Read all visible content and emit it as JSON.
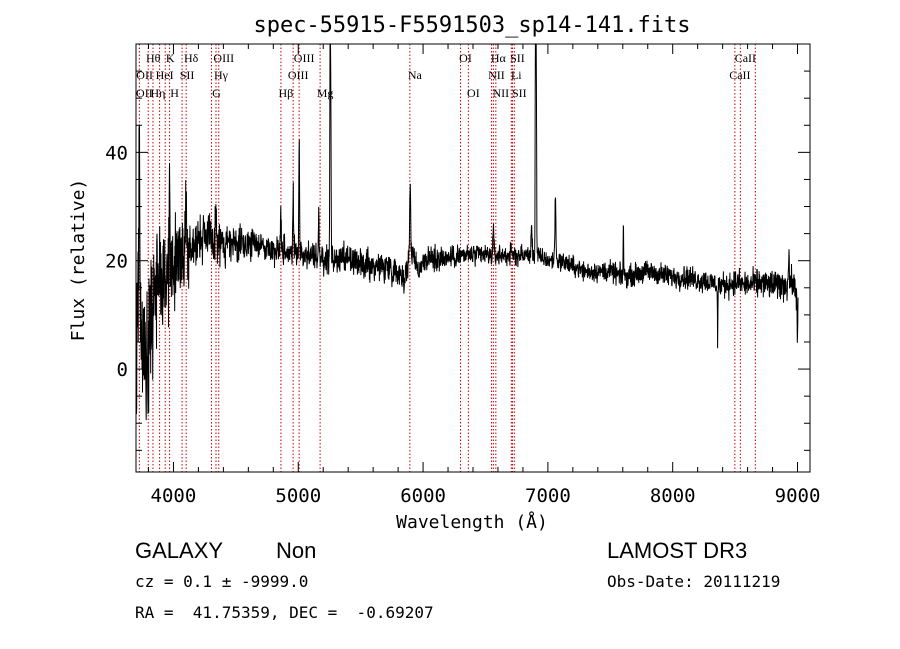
{
  "chart_data": {
    "type": "line",
    "title": "spec-55915-F5591503_sp14-141.fits",
    "xlabel": "Wavelength (Å)",
    "ylabel": "Flux (relative)",
    "xlim": [
      3700,
      9100
    ],
    "ylim": [
      -19,
      60
    ],
    "x_ticks": [
      4000,
      5000,
      6000,
      7000,
      8000,
      9000
    ],
    "y_ticks": [
      0,
      20,
      40
    ],
    "grid": false,
    "series": [
      {
        "name": "spectrum",
        "anchors": [
          [
            3700,
            3
          ],
          [
            3760,
            8
          ],
          [
            3800,
            5
          ],
          [
            3850,
            14
          ],
          [
            3900,
            18
          ],
          [
            3950,
            19
          ],
          [
            4000,
            20
          ],
          [
            4100,
            22
          ],
          [
            4200,
            24
          ],
          [
            4300,
            24
          ],
          [
            4400,
            23
          ],
          [
            4500,
            23
          ],
          [
            4600,
            23
          ],
          [
            4700,
            23
          ],
          [
            4800,
            22
          ],
          [
            4900,
            22
          ],
          [
            5000,
            21
          ],
          [
            5100,
            21
          ],
          [
            5200,
            20
          ],
          [
            5300,
            20
          ],
          [
            5400,
            20
          ],
          [
            5500,
            19.5
          ],
          [
            5600,
            19
          ],
          [
            5700,
            19
          ],
          [
            5800,
            18
          ],
          [
            5850,
            17
          ],
          [
            5920,
            22
          ],
          [
            5960,
            18
          ],
          [
            6000,
            20
          ],
          [
            6100,
            20.5
          ],
          [
            6200,
            20.5
          ],
          [
            6300,
            21
          ],
          [
            6400,
            21
          ],
          [
            6500,
            21
          ],
          [
            6600,
            21
          ],
          [
            6700,
            21
          ],
          [
            6800,
            21
          ],
          [
            6900,
            21
          ],
          [
            7000,
            20
          ],
          [
            7100,
            20
          ],
          [
            7200,
            19
          ],
          [
            7300,
            18
          ],
          [
            7400,
            18
          ],
          [
            7500,
            18
          ],
          [
            7600,
            17
          ],
          [
            7700,
            17.5
          ],
          [
            7800,
            18
          ],
          [
            7900,
            17.5
          ],
          [
            8000,
            17
          ],
          [
            8100,
            17
          ],
          [
            8200,
            16.5
          ],
          [
            8300,
            16
          ],
          [
            8400,
            15.5
          ],
          [
            8500,
            16
          ],
          [
            8600,
            15.5
          ],
          [
            8700,
            16
          ],
          [
            8800,
            15.5
          ],
          [
            8900,
            15.5
          ],
          [
            8950,
            16
          ],
          [
            9000,
            14
          ]
        ],
        "noise": [
          [
            3700,
            14
          ],
          [
            3800,
            12
          ],
          [
            3900,
            9
          ],
          [
            4000,
            7
          ],
          [
            4100,
            5
          ],
          [
            4300,
            3.5
          ],
          [
            4600,
            2.5
          ],
          [
            5000,
            2.2
          ],
          [
            5700,
            2.5
          ],
          [
            6000,
            2
          ],
          [
            7000,
            1.5
          ],
          [
            8000,
            1.8
          ],
          [
            8500,
            2
          ],
          [
            9000,
            2.5
          ]
        ],
        "features": [
          [
            3727,
            43,
            3
          ],
          [
            3869,
            10,
            3
          ],
          [
            3968,
            12,
            3
          ],
          [
            4101,
            9,
            4
          ],
          [
            4340,
            7,
            4
          ],
          [
            4861,
            8,
            3
          ],
          [
            4959,
            12,
            3
          ],
          [
            5007,
            22,
            3
          ],
          [
            5165,
            8,
            3
          ],
          [
            5255,
            40,
            2.5
          ],
          [
            5260,
            30,
            3
          ],
          [
            5896,
            14,
            4
          ],
          [
            6563,
            4,
            4
          ],
          [
            6870,
            5,
            4
          ],
          [
            6900,
            45,
            2
          ],
          [
            6906,
            40,
            3
          ],
          [
            7060,
            12,
            4
          ],
          [
            7605,
            11,
            2
          ],
          [
            8360,
            -11,
            2
          ],
          [
            8930,
            6,
            3
          ],
          [
            9000,
            -8,
            3
          ]
        ],
        "y_range": [
          -19,
          60
        ]
      }
    ],
    "annotations": [
      {
        "label": "OII",
        "wavelength": 3727,
        "row": 3
      },
      {
        "label": "OII",
        "wavelength": 3729,
        "row": 2
      },
      {
        "label": "Hθ",
        "wavelength": 3798,
        "row": 1
      },
      {
        "label": "Hη",
        "wavelength": 3836,
        "row": 3
      },
      {
        "label": "HeI",
        "wavelength": 3889,
        "row": 2
      },
      {
        "label": "K",
        "wavelength": 3934,
        "row": 1
      },
      {
        "label": "H",
        "wavelength": 3969,
        "row": 3
      },
      {
        "label": "Hδ",
        "wavelength": 4102,
        "row": 1
      },
      {
        "label": "SII",
        "wavelength": 4069,
        "row": 2
      },
      {
        "label": "G",
        "wavelength": 4305,
        "row": 3
      },
      {
        "label": "Hγ",
        "wavelength": 4341,
        "row": 2
      },
      {
        "label": "OIII",
        "wavelength": 4363,
        "row": 1
      },
      {
        "label": "Hβ",
        "wavelength": 4861,
        "row": 3
      },
      {
        "label": "OIII",
        "wavelength": 4959,
        "row": 2
      },
      {
        "label": "OIII",
        "wavelength": 5007,
        "row": 1
      },
      {
        "label": "Mg",
        "wavelength": 5175,
        "row": 3
      },
      {
        "label": "Na",
        "wavelength": 5894,
        "row": 2
      },
      {
        "label": "OI",
        "wavelength": 6300,
        "row": 1
      },
      {
        "label": "OI",
        "wavelength": 6363,
        "row": 3
      },
      {
        "label": "NII",
        "wavelength": 6548,
        "row": 2
      },
      {
        "label": "Hα",
        "wavelength": 6563,
        "row": 1
      },
      {
        "label": "NII",
        "wavelength": 6583,
        "row": 3
      },
      {
        "label": "Li",
        "wavelength": 6707,
        "row": 2
      },
      {
        "label": "SII",
        "wavelength": 6716,
        "row": 1
      },
      {
        "label": "SII",
        "wavelength": 6731,
        "row": 3
      },
      {
        "label": "CaII",
        "wavelength": 8498,
        "row": 2
      },
      {
        "label": "CaII",
        "wavelength": 8542,
        "row": 1
      }
    ],
    "marker_lines_observed": [
      3727,
      3798,
      3836,
      3889,
      3934,
      3969,
      4069,
      4102,
      4305,
      4341,
      4363,
      4861,
      4959,
      5007,
      5175,
      5894,
      6300,
      6363,
      6548,
      6563,
      6583,
      6707,
      6716,
      6731,
      8498,
      8542,
      8662
    ],
    "marker_color": "#cc0000",
    "line_color": "#000000"
  },
  "info": {
    "object_class": "GALAXY",
    "object_subclass": "Non",
    "survey": "LAMOST DR3",
    "redshift_line": "cz = 0.1 ± -9999.0",
    "obs_date_line": "Obs-Date: 20111219",
    "radec_line": "RA =  41.75359, DEC =  -0.69207"
  }
}
